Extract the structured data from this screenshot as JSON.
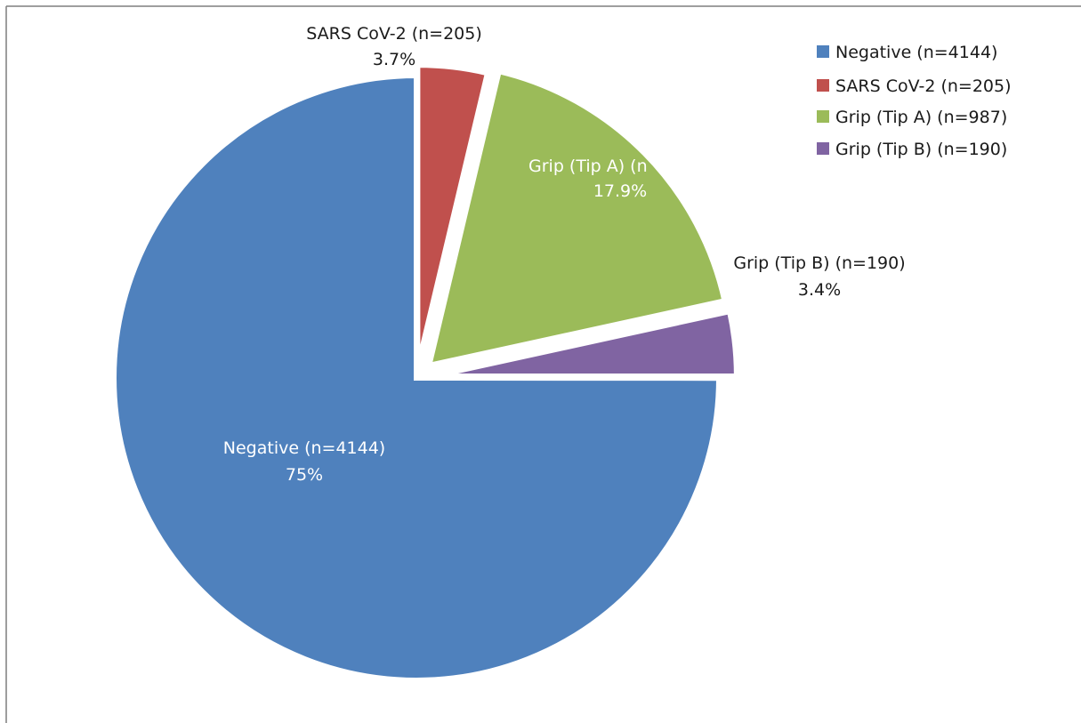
{
  "chart_data": {
    "type": "pie",
    "title": "",
    "slices": [
      {
        "label": "Negative (n=4144)",
        "value": 4144,
        "percent_label": "75%",
        "color": "#4f81bd"
      },
      {
        "label": "SARS CoV-2 (n=205)",
        "value": 205,
        "percent_label": "3.7%",
        "color": "#c0504d"
      },
      {
        "label": "Grip (Tip A) (n=987)",
        "value": 987,
        "percent_label": "17.9%",
        "color": "#9bbb59"
      },
      {
        "label": "Grip (Tip B) (n=190)",
        "value": 190,
        "percent_label": "3.4%",
        "color": "#8064a2"
      }
    ],
    "data_label_visible_text": {
      "grip_tip_a": "Grip (Tip A) (n"
    },
    "legend": {
      "placement": "top-right",
      "entries": [
        "Negative (n=4144)",
        "SARS CoV-2 (n=205)",
        "Grip (Tip A) (n=987)",
        "Grip (Tip B) (n=190)"
      ]
    },
    "exploded": true,
    "label_colors": {
      "inside": "#ffffff",
      "outside": "#1a1a1a"
    },
    "frame_color": "#7f7f7f"
  }
}
